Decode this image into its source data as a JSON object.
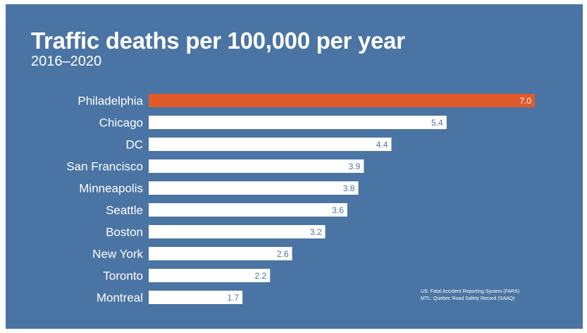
{
  "colors": {
    "background": "#4a74a3",
    "bar": "#ffffff",
    "highlight_bar": "#e05a2b",
    "label_text": "#ffffff",
    "value_text_on_white": "#4a74a3",
    "value_text_on_highlight": "#ffffff"
  },
  "chart_data": {
    "type": "bar",
    "orientation": "horizontal",
    "title": "Traffic deaths per 100,000 per year",
    "subtitle": "2016–2020",
    "categories": [
      "Philadelphia",
      "Chicago",
      "DC",
      "San Francisco",
      "Minneapolis",
      "Seattle",
      "Boston",
      "New York",
      "Toronto",
      "Montreal"
    ],
    "values": [
      7.0,
      5.4,
      4.4,
      3.9,
      3.8,
      3.6,
      3.2,
      2.6,
      2.2,
      1.7
    ],
    "value_labels": [
      "7.0",
      "5.4",
      "4.4",
      "3.9",
      "3.8",
      "3.6",
      "3.2",
      "2.6",
      "2.2",
      "1.7"
    ],
    "highlight_index": 0,
    "xlim": [
      0,
      7.0
    ],
    "grid": false,
    "legend": "none",
    "source_lines": [
      "US: Fatal Accident Reporting System (FARS)",
      "MTL: Quebec Road Safety Record (SAAQ)"
    ]
  }
}
